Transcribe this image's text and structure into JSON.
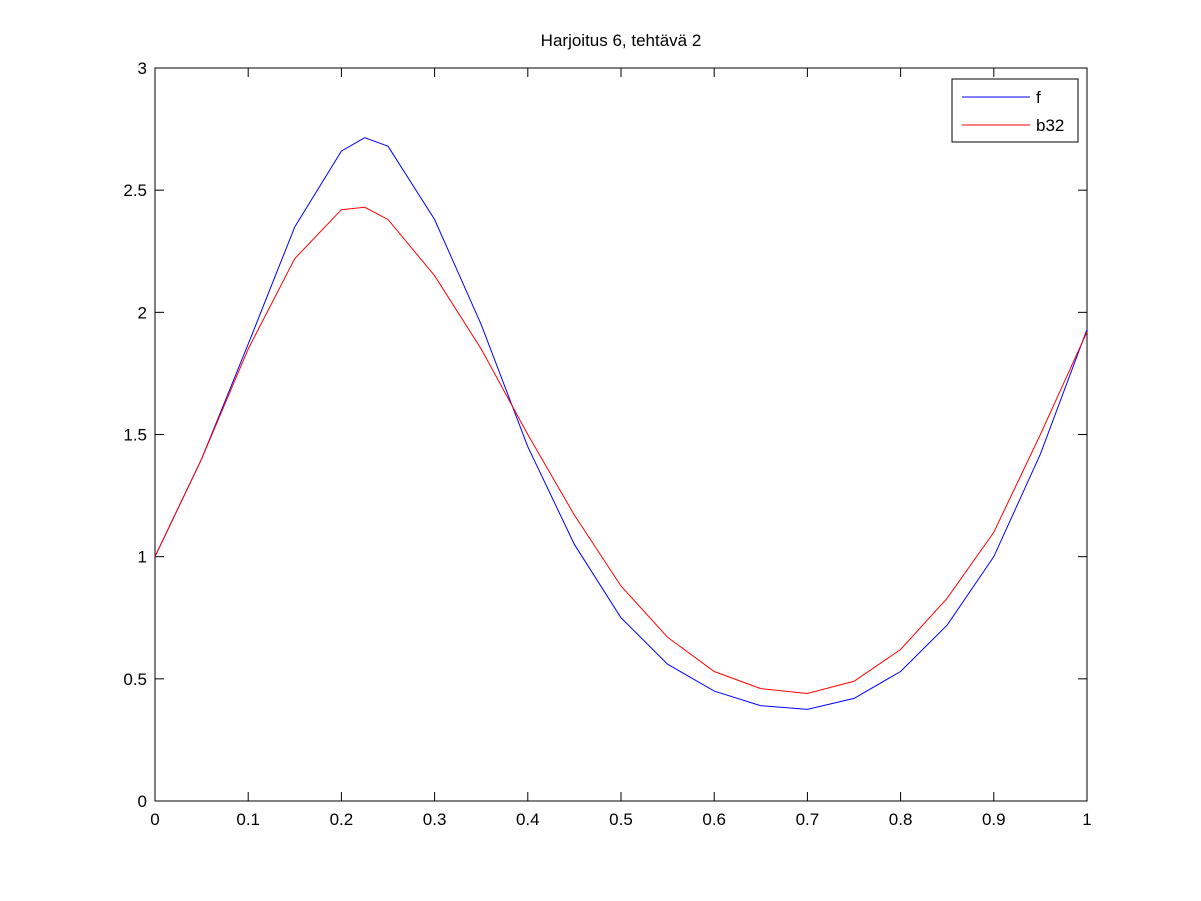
{
  "chart_data": {
    "type": "line",
    "title": "Harjoitus 6, tehtävä 2",
    "x": [
      0,
      0.05,
      0.1,
      0.15,
      0.2,
      0.225,
      0.25,
      0.3,
      0.35,
      0.4,
      0.45,
      0.5,
      0.55,
      0.6,
      0.65,
      0.7,
      0.75,
      0.8,
      0.85,
      0.9,
      0.95,
      1
    ],
    "series": [
      {
        "name": "f",
        "color": "#0000ff",
        "values": [
          1.0,
          1.4,
          1.87,
          2.35,
          2.66,
          2.715,
          2.68,
          2.38,
          1.95,
          1.45,
          1.05,
          0.75,
          0.56,
          0.45,
          0.39,
          0.375,
          0.42,
          0.53,
          0.72,
          1.0,
          1.42,
          1.93
        ]
      },
      {
        "name": "b32",
        "color": "#ff0000",
        "values": [
          1.0,
          1.4,
          1.85,
          2.22,
          2.42,
          2.43,
          2.38,
          2.15,
          1.85,
          1.5,
          1.17,
          0.88,
          0.67,
          0.53,
          0.46,
          0.44,
          0.49,
          0.62,
          0.83,
          1.1,
          1.5,
          1.92
        ]
      }
    ],
    "xlim": [
      0,
      1
    ],
    "xticks": [
      0,
      0.1,
      0.2,
      0.3,
      0.4,
      0.5,
      0.6,
      0.7,
      0.8,
      0.9,
      1
    ],
    "ylim": [
      0,
      3
    ],
    "yticks": [
      0,
      0.5,
      1,
      1.5,
      2,
      2.5,
      3
    ],
    "legend": "top-right",
    "grid": false
  }
}
